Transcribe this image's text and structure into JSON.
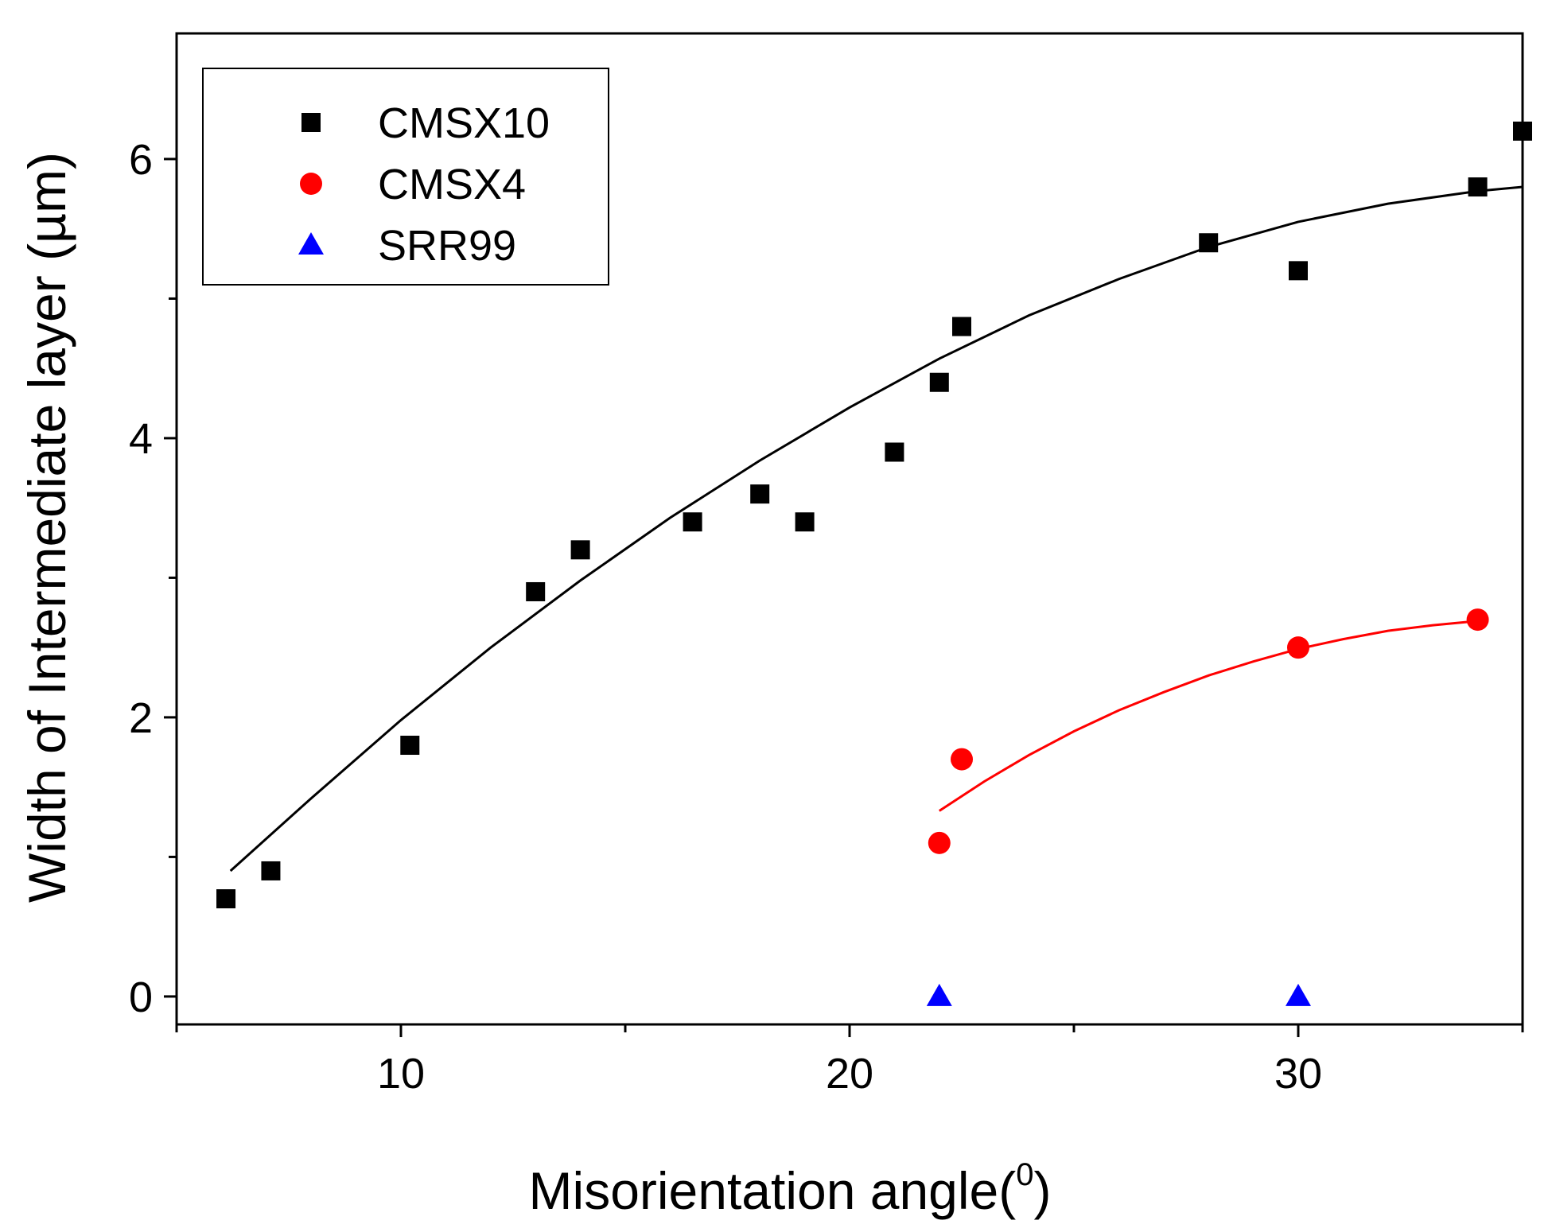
{
  "chart_data": {
    "type": "scatter",
    "title": "",
    "xlabel": "Misorientation angle(",
    "xlabel_superscript": "0",
    "xlabel_suffix": ")",
    "ylabel": "Width of Intermediate layer (µm)",
    "xlim": [
      5,
      35
    ],
    "ylim": [
      -0.2,
      6.9
    ],
    "xticks": [
      10,
      20,
      30
    ],
    "xticks_minor": [
      5,
      15,
      25,
      35
    ],
    "yticks": [
      0,
      2,
      4,
      6
    ],
    "yticks_minor": [
      1,
      3,
      5
    ],
    "grid": false,
    "legend_position": "top-left",
    "series": [
      {
        "name": "CMSX10",
        "marker": "square",
        "color": "#000000",
        "points": [
          {
            "x": 6.1,
            "y": 0.7
          },
          {
            "x": 7.1,
            "y": 0.9
          },
          {
            "x": 10.2,
            "y": 1.8
          },
          {
            "x": 13.0,
            "y": 2.9
          },
          {
            "x": 14.0,
            "y": 3.2
          },
          {
            "x": 16.5,
            "y": 3.4
          },
          {
            "x": 18.0,
            "y": 3.6
          },
          {
            "x": 19.0,
            "y": 3.4
          },
          {
            "x": 21.0,
            "y": 3.9
          },
          {
            "x": 22.0,
            "y": 4.4
          },
          {
            "x": 22.5,
            "y": 4.8
          },
          {
            "x": 28.0,
            "y": 5.4
          },
          {
            "x": 30.0,
            "y": 5.2
          },
          {
            "x": 34.0,
            "y": 5.8
          },
          {
            "x": 35.0,
            "y": 6.2
          }
        ],
        "fit": {
          "x": [
            6.2,
            8,
            10,
            12,
            14,
            16,
            18,
            20,
            22,
            24,
            26,
            28,
            30,
            32,
            34,
            35
          ],
          "y": [
            0.9,
            1.42,
            1.98,
            2.5,
            2.98,
            3.43,
            3.84,
            4.22,
            4.57,
            4.88,
            5.14,
            5.37,
            5.55,
            5.68,
            5.77,
            5.8
          ]
        }
      },
      {
        "name": "CMSX4",
        "marker": "circle",
        "color": "#ff0000",
        "points": [
          {
            "x": 22.0,
            "y": 1.1
          },
          {
            "x": 22.5,
            "y": 1.7
          },
          {
            "x": 30.0,
            "y": 2.5
          },
          {
            "x": 34.0,
            "y": 2.7
          }
        ],
        "fit": {
          "x": [
            22,
            23,
            24,
            25,
            26,
            27,
            28,
            29,
            30,
            31,
            32,
            33,
            34
          ],
          "y": [
            1.33,
            1.54,
            1.73,
            1.9,
            2.05,
            2.18,
            2.3,
            2.4,
            2.49,
            2.56,
            2.62,
            2.66,
            2.69
          ]
        }
      },
      {
        "name": "SRR99",
        "marker": "triangle",
        "color": "#0000ff",
        "points": [
          {
            "x": 22.0,
            "y": 0.0
          },
          {
            "x": 30.0,
            "y": 0.0
          }
        ]
      }
    ]
  }
}
